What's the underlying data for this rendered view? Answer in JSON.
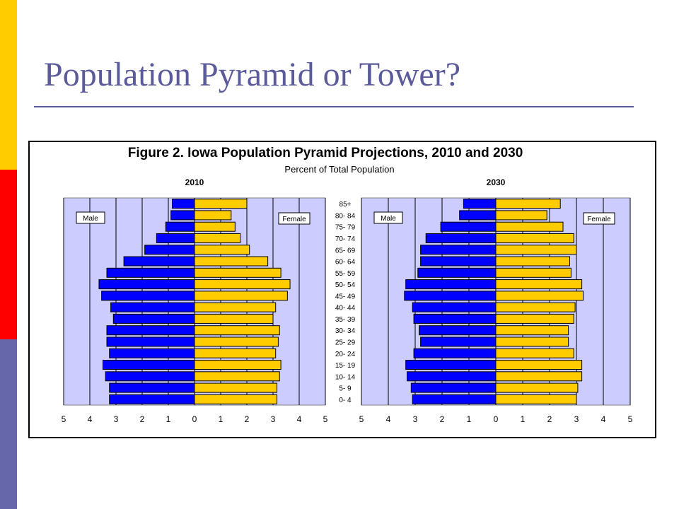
{
  "slide": {
    "title": "Population Pyramid or Tower?"
  },
  "colors": {
    "sidebar": [
      "#ffcc00",
      "#ff0000",
      "#6666aa"
    ],
    "title_text": "#5b5b9b",
    "plot_background": "#ccccff",
    "male": "#0000ff",
    "female": "#ffcc00",
    "bar_outline": "#000000"
  },
  "chart_data": {
    "type": "bar",
    "orientation": "horizontal-population-pyramid",
    "title": "Figure 2. Iowa Population Pyramid Projections, 2010 and 2030",
    "subtitle": "Percent of Total Population",
    "categories": [
      "85+",
      "80- 84",
      "75- 79",
      "70- 74",
      "65- 69",
      "60- 64",
      "55- 59",
      "50- 54",
      "45- 49",
      "40- 44",
      "35- 39",
      "30- 34",
      "25- 29",
      "20- 24",
      "15- 19",
      "10- 14",
      "5- 9",
      "0- 4"
    ],
    "x_ticks": [
      "5",
      "4",
      "3",
      "2",
      "1",
      "0",
      "1",
      "2",
      "3",
      "4",
      "5"
    ],
    "xlim": [
      -5,
      5
    ],
    "grid": true,
    "panels": [
      {
        "title": "2010",
        "legend": [
          "Male",
          "Female"
        ],
        "series": [
          {
            "name": "Male",
            "values": [
              0.85,
              0.9,
              1.1,
              1.45,
              1.9,
              2.7,
              3.35,
              3.65,
              3.55,
              3.2,
              3.1,
              3.35,
              3.35,
              3.25,
              3.5,
              3.4,
              3.25,
              3.25
            ]
          },
          {
            "name": "Female",
            "values": [
              2.0,
              1.4,
              1.55,
              1.75,
              2.1,
              2.8,
              3.3,
              3.65,
              3.55,
              3.1,
              3.0,
              3.25,
              3.2,
              3.1,
              3.3,
              3.25,
              3.15,
              3.15
            ]
          }
        ]
      },
      {
        "title": "2030",
        "legend": [
          "Male",
          "Female"
        ],
        "series": [
          {
            "name": "Male",
            "values": [
              1.2,
              1.35,
              2.05,
              2.6,
              2.8,
              2.8,
              2.9,
              3.35,
              3.4,
              3.1,
              3.05,
              2.85,
              2.8,
              3.05,
              3.35,
              3.3,
              3.15,
              3.1
            ]
          },
          {
            "name": "Female",
            "values": [
              2.4,
              1.9,
              2.5,
              2.9,
              3.0,
              2.75,
              2.8,
              3.2,
              3.25,
              2.95,
              2.9,
              2.7,
              2.7,
              2.9,
              3.2,
              3.2,
              3.05,
              3.0
            ]
          }
        ]
      }
    ]
  }
}
